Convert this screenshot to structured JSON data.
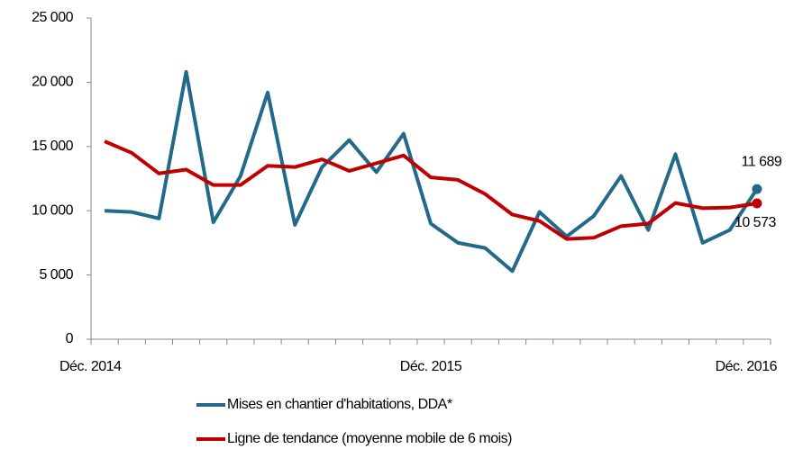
{
  "chart_data": {
    "type": "line",
    "categories": [
      "Déc. 2014",
      null,
      null,
      null,
      null,
      null,
      null,
      null,
      null,
      null,
      null,
      null,
      "Déc. 2015",
      null,
      null,
      null,
      null,
      null,
      null,
      null,
      null,
      null,
      null,
      null,
      "Déc. 2016"
    ],
    "series": [
      {
        "name": "Mises en chantier d'habitations, DDA*",
        "color": "#236a8a",
        "values": [
          10000,
          9900,
          9400,
          20800,
          9100,
          12700,
          19200,
          8900,
          13400,
          15500,
          13000,
          16000,
          9000,
          7500,
          7100,
          5300,
          9900,
          8000,
          9600,
          12700,
          8500,
          14400,
          7500,
          8500,
          11689
        ],
        "value_labels": [
          null,
          null,
          null,
          null,
          null,
          null,
          null,
          null,
          null,
          null,
          null,
          null,
          null,
          null,
          null,
          null,
          null,
          null,
          null,
          null,
          null,
          null,
          null,
          null,
          "11 689"
        ]
      },
      {
        "name": "Ligne de tendance (moyenne mobile de 6 mois)",
        "color": "#c00000",
        "values": [
          15400,
          14500,
          12900,
          13200,
          12000,
          12000,
          13500,
          13400,
          14000,
          13100,
          13700,
          14300,
          12600,
          12400,
          11300,
          9700,
          9200,
          7800,
          7900,
          8800,
          9000,
          10600,
          10200,
          10250,
          10573
        ],
        "value_labels": [
          null,
          null,
          null,
          null,
          null,
          null,
          null,
          null,
          null,
          null,
          null,
          null,
          null,
          null,
          null,
          null,
          null,
          null,
          null,
          null,
          null,
          null,
          null,
          null,
          "10 573"
        ]
      }
    ],
    "ylim": [
      0,
      25000
    ],
    "yticks": [
      0,
      {
        "value": 5000,
        "label": "5 000"
      },
      {
        "value": 10000,
        "label": "10 000"
      },
      {
        "value": 15000,
        "label": "15 000"
      },
      {
        "value": 20000,
        "label": "20 000"
      },
      {
        "value": 25000,
        "label": "25 000"
      }
    ],
    "grid": false
  }
}
